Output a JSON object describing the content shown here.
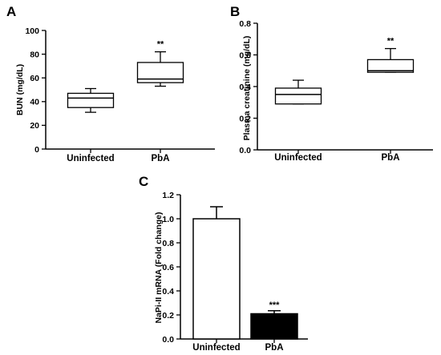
{
  "chart_data": [
    {
      "panel": "A",
      "type": "box",
      "categories": [
        "Uninfected",
        "PbA"
      ],
      "xlabel": "",
      "ylabel": "BUN (mg/dL)",
      "ylim": [
        0,
        100
      ],
      "yticks": [
        "0",
        "20",
        "40",
        "60",
        "80",
        "100"
      ],
      "boxes": [
        {
          "min": 31,
          "q1": 35,
          "median": 43,
          "q3": 47,
          "max": 51,
          "sig": ""
        },
        {
          "min": 53,
          "q1": 56,
          "median": 59,
          "q3": 73,
          "max": 82,
          "sig": "**"
        }
      ]
    },
    {
      "panel": "B",
      "type": "box",
      "categories": [
        "Uninfected",
        "PbA"
      ],
      "xlabel": "",
      "ylabel": "Plasma creatinine (mg/dL)",
      "ylim": [
        0,
        0.8
      ],
      "yticks": [
        "0.0",
        "0.2",
        "0.4",
        "0.6",
        "0.8"
      ],
      "boxes": [
        {
          "min": 0.29,
          "q1": 0.29,
          "median": 0.35,
          "q3": 0.39,
          "max": 0.44,
          "sig": ""
        },
        {
          "min": 0.49,
          "q1": 0.49,
          "median": 0.5,
          "q3": 0.57,
          "max": 0.64,
          "sig": "**"
        }
      ]
    },
    {
      "panel": "C",
      "type": "bar",
      "categories": [
        "Uninfected",
        "PbA"
      ],
      "xlabel": "",
      "ylabel": "NaPi-II mRNA (Fold change)",
      "ylim": [
        0,
        1.2
      ],
      "yticks": [
        "0.0",
        "0.2",
        "0.4",
        "0.6",
        "0.8",
        "1.0",
        "1.2"
      ],
      "values": [
        1.0,
        0.21
      ],
      "errors": [
        0.1,
        0.025
      ],
      "fills": [
        "#ffffff",
        "#000000"
      ],
      "sig": [
        "",
        "***"
      ]
    }
  ]
}
